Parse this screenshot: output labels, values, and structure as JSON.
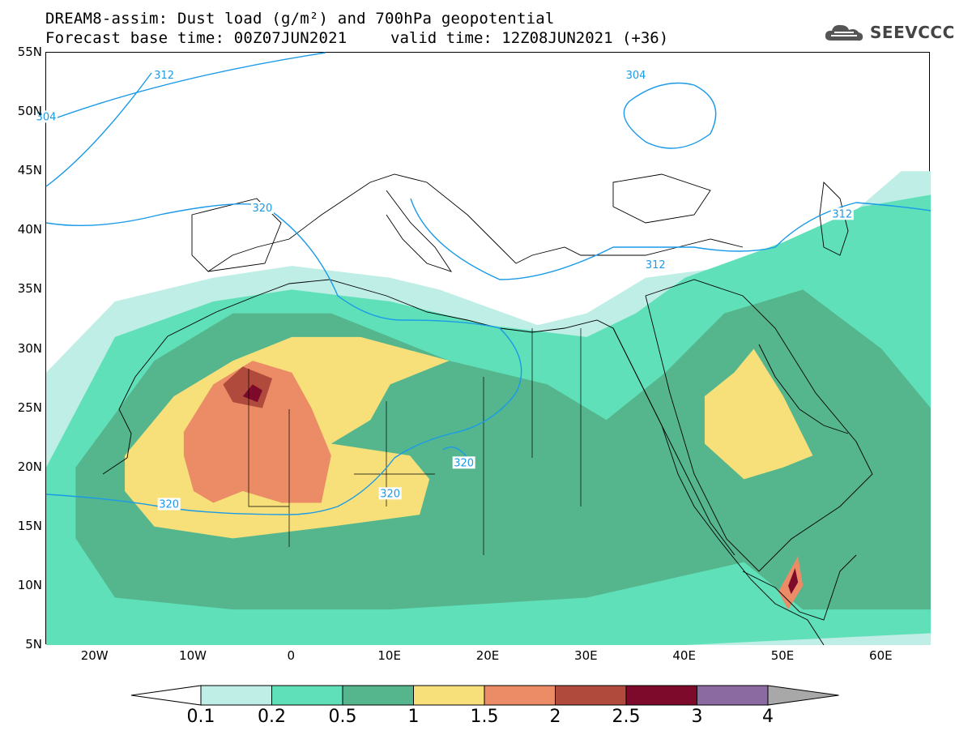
{
  "title": {
    "line1": "DREAM8-assim: Dust load (g/m²) and 700hPa geopotential",
    "line2": "Forecast base time: 00Z07JUN2021",
    "valid": "valid time: 12Z08JUN2021 (+36)"
  },
  "logo": {
    "text": "SEEVCCC",
    "icon": "cloud-icon"
  },
  "axes": {
    "lat_labels": [
      "55N",
      "50N",
      "45N",
      "40N",
      "35N",
      "30N",
      "25N",
      "20N",
      "15N",
      "10N",
      "5N"
    ],
    "lat_values": [
      55,
      50,
      45,
      40,
      35,
      30,
      25,
      20,
      15,
      10,
      5
    ],
    "lon_labels": [
      "20W",
      "10W",
      "0",
      "10E",
      "20E",
      "30E",
      "40E",
      "50E",
      "60E"
    ],
    "lon_values": [
      -20,
      -10,
      0,
      10,
      20,
      30,
      40,
      50,
      60
    ],
    "lon_range": [
      -25,
      65
    ],
    "lat_range": [
      5,
      55
    ]
  },
  "contour_labels": [
    {
      "text": "312",
      "lon": -13,
      "lat": 53
    },
    {
      "text": "304",
      "lon": -25,
      "lat": 49.5
    },
    {
      "text": "304",
      "lon": 35,
      "lat": 53
    },
    {
      "text": "320",
      "lon": -3,
      "lat": 41.8
    },
    {
      "text": "312",
      "lon": 37,
      "lat": 37
    },
    {
      "text": "312",
      "lon": 56,
      "lat": 41.3
    },
    {
      "text": "320",
      "lon": -12.5,
      "lat": 16.8
    },
    {
      "text": "320",
      "lon": 10,
      "lat": 17.7
    },
    {
      "text": "320",
      "lon": 17.5,
      "lat": 20.3
    }
  ],
  "colorbar": {
    "labels": [
      "0.1",
      "0.2",
      "0.5",
      "1",
      "1.5",
      "2",
      "2.5",
      "3",
      "4"
    ],
    "colors": [
      "#bfeee6",
      "#5fe0b8",
      "#55b68e",
      "#f7e079",
      "#ec8c66",
      "#b04a3c",
      "#7d0a2a",
      "#8a6aa0",
      "#a8a8a8"
    ]
  },
  "dust_regions": [
    {
      "level": 1,
      "color": "#bfeee6",
      "points": [
        [
          -25,
          28
        ],
        [
          -18,
          34
        ],
        [
          -8,
          36
        ],
        [
          0,
          37
        ],
        [
          10,
          36
        ],
        [
          15,
          35
        ],
        [
          25,
          32
        ],
        [
          30,
          33
        ],
        [
          36,
          36
        ],
        [
          45,
          37
        ],
        [
          55,
          40
        ],
        [
          62,
          45
        ],
        [
          65,
          45
        ],
        [
          65,
          5
        ],
        [
          -25,
          5
        ]
      ]
    },
    {
      "level": 2,
      "color": "#5fe0b8",
      "points": [
        [
          -25,
          20
        ],
        [
          -18,
          31
        ],
        [
          -8,
          34
        ],
        [
          0,
          35
        ],
        [
          10,
          34
        ],
        [
          20,
          32
        ],
        [
          30,
          31
        ],
        [
          35,
          33
        ],
        [
          40,
          36
        ],
        [
          50,
          39
        ],
        [
          58,
          42
        ],
        [
          65,
          43
        ],
        [
          65,
          6
        ],
        [
          40,
          5
        ],
        [
          -25,
          5
        ]
      ]
    },
    {
      "level": 3,
      "color": "#55b68e",
      "points": [
        [
          -22,
          20
        ],
        [
          -14,
          29
        ],
        [
          -6,
          33
        ],
        [
          4,
          33
        ],
        [
          16,
          29
        ],
        [
          26,
          27
        ],
        [
          32,
          24
        ],
        [
          38,
          28
        ],
        [
          44,
          33
        ],
        [
          52,
          35
        ],
        [
          60,
          30
        ],
        [
          65,
          25
        ],
        [
          65,
          8
        ],
        [
          52,
          8
        ],
        [
          46,
          12
        ],
        [
          30,
          9
        ],
        [
          10,
          8
        ],
        [
          -6,
          8
        ],
        [
          -18,
          9
        ],
        [
          -22,
          14
        ]
      ]
    },
    {
      "level": 4,
      "color": "#f7e079",
      "points": [
        [
          -17,
          21
        ],
        [
          -12,
          26
        ],
        [
          -6,
          29
        ],
        [
          0,
          31
        ],
        [
          7,
          31
        ],
        [
          16,
          29
        ],
        [
          10,
          27
        ],
        [
          8,
          24
        ],
        [
          4,
          22
        ],
        [
          12,
          21
        ],
        [
          14,
          19
        ],
        [
          13,
          16
        ],
        [
          4,
          15
        ],
        [
          -6,
          14
        ],
        [
          -14,
          15
        ],
        [
          -17,
          18
        ]
      ]
    },
    {
      "level": 4,
      "color": "#f7e079",
      "points": [
        [
          42,
          26
        ],
        [
          45,
          28
        ],
        [
          47,
          30
        ],
        [
          50,
          26
        ],
        [
          53,
          21
        ],
        [
          50,
          20
        ],
        [
          46,
          19
        ],
        [
          42,
          22
        ]
      ]
    },
    {
      "level": 5,
      "color": "#ec8c66",
      "points": [
        [
          -11,
          23
        ],
        [
          -8,
          27
        ],
        [
          -4,
          29
        ],
        [
          0,
          28
        ],
        [
          2,
          25
        ],
        [
          4,
          21
        ],
        [
          3,
          17
        ],
        [
          -1,
          17
        ],
        [
          -5,
          18
        ],
        [
          -8,
          17
        ],
        [
          -10,
          18
        ],
        [
          -11,
          21
        ]
      ]
    },
    {
      "level": 5,
      "color": "#ec8c66",
      "points": [
        [
          49.5,
          9.5
        ],
        [
          51.5,
          12.5
        ],
        [
          52,
          10
        ],
        [
          50.5,
          8
        ]
      ]
    },
    {
      "level": 6,
      "color": "#b04a3c",
      "points": [
        [
          -7,
          27
        ],
        [
          -5,
          28.5
        ],
        [
          -2,
          27.5
        ],
        [
          -3,
          25
        ],
        [
          -6,
          25.5
        ]
      ]
    },
    {
      "level": 7,
      "color": "#7d0a2a",
      "points": [
        [
          -5,
          26
        ],
        [
          -4,
          27
        ],
        [
          -3,
          26.5
        ],
        [
          -3.5,
          25.5
        ]
      ]
    },
    {
      "level": 7,
      "color": "#7d0a2a",
      "points": [
        [
          50.5,
          10
        ],
        [
          51.2,
          11.5
        ],
        [
          51.5,
          10.3
        ],
        [
          50.8,
          9.3
        ]
      ]
    }
  ]
}
